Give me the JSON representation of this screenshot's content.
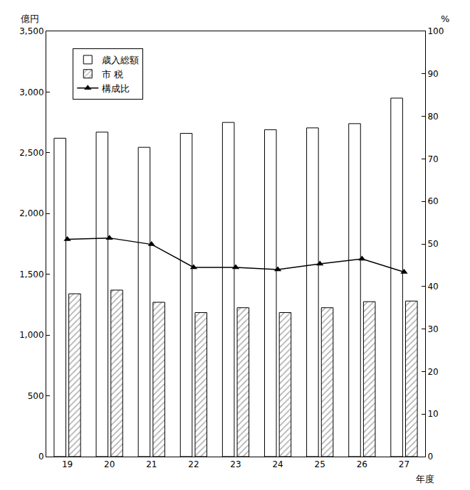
{
  "chart_data": {
    "type": "bar",
    "xlabel": "年度",
    "ylabel": "億円",
    "y2label": "%",
    "categories": [
      "19",
      "20",
      "21",
      "22",
      "23",
      "24",
      "25",
      "26",
      "27"
    ],
    "series": [
      {
        "name": "歳入総額",
        "type": "bar",
        "color": "#ffffff",
        "marker": "plain",
        "values": [
          2620,
          2670,
          2545,
          2660,
          2750,
          2690,
          2705,
          2740,
          2950
        ]
      },
      {
        "name": "市 税",
        "type": "bar",
        "color": "#555555",
        "marker": "hatch",
        "values": [
          1340,
          1370,
          1270,
          1185,
          1225,
          1185,
          1225,
          1275,
          1280
        ]
      },
      {
        "name": "構成比",
        "type": "line",
        "axis": "y2",
        "color": "#000000",
        "marker": "triangle-up",
        "line_style": "solid",
        "values": [
          51.1,
          51.4,
          49.9,
          44.5,
          44.5,
          44.0,
          45.3,
          46.5,
          43.4
        ]
      }
    ],
    "ylim": [
      0,
      3500
    ],
    "yticks": [
      0,
      500,
      {
        "value": 1000,
        "label": "1,000"
      },
      {
        "value": 1500,
        "label": "1,500"
      },
      {
        "value": 2000,
        "label": "2,000"
      },
      {
        "value": 2500,
        "label": "2,500"
      },
      {
        "value": 3000,
        "label": "3,000"
      },
      {
        "value": 3500,
        "label": "3,500"
      }
    ],
    "y2lim": [
      0,
      100
    ],
    "y2ticks": [
      0,
      10,
      20,
      30,
      40,
      50,
      60,
      70,
      80,
      90,
      100
    ],
    "grid": false,
    "legend": "upper left"
  }
}
